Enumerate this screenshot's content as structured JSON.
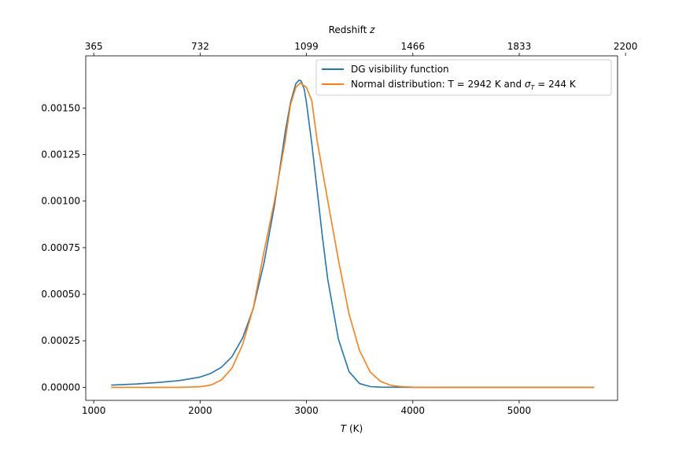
{
  "chart_data": {
    "type": "line",
    "xlabel_prefix": "T",
    "xlabel_suffix": " (K)",
    "top_xlabel_prefix": "Redshift ",
    "top_xlabel_var": "z",
    "xlim": [
      925,
      5925
    ],
    "ylim": [
      -7e-05,
      0.00178
    ],
    "xticks": [
      1000,
      2000,
      3000,
      4000,
      5000
    ],
    "xtick_labels": [
      "1000",
      "2000",
      "3000",
      "4000",
      "5000"
    ],
    "yticks": [
      0.0,
      0.00025,
      0.0005,
      0.00075,
      0.001,
      0.00125,
      0.0015
    ],
    "ytick_labels": [
      "0.00000",
      "0.00025",
      "0.00050",
      "0.00075",
      "0.00100",
      "0.00125",
      "0.00150"
    ],
    "top_xticks_T": [
      1000.6,
      2000.9,
      3000.0,
      4000.3,
      5000.6,
      6000.0
    ],
    "top_xtick_labels": [
      "365",
      "732",
      "1099",
      "1466",
      "1833",
      "2200"
    ],
    "legend_position": "upper right",
    "grid": false,
    "series": [
      {
        "name": "DG visibility function",
        "color": "#1f77b4",
        "x": [
          1170,
          1400,
          1600,
          1800,
          2000,
          2100,
          2200,
          2300,
          2400,
          2500,
          2600,
          2700,
          2800,
          2850,
          2900,
          2930,
          2950,
          2980,
          3000,
          3050,
          3100,
          3150,
          3200,
          3300,
          3400,
          3500,
          3600,
          3700,
          4000,
          5700
        ],
        "y": [
          1.2e-05,
          1.8e-05,
          2.6e-05,
          3.6e-05,
          5.5e-05,
          7.5e-05,
          0.000108,
          0.000165,
          0.000265,
          0.000423,
          0.000666,
          0.00098,
          0.00137,
          0.00153,
          0.00163,
          0.00165,
          0.001645,
          0.0016,
          0.00153,
          0.00131,
          0.00106,
          0.00081,
          0.00058,
          0.00026,
          8.5e-05,
          2e-05,
          4e-06,
          1e-06,
          0.0,
          0.0
        ]
      },
      {
        "name": "Normal distribution: T = 2942 K and σT = 244 K",
        "color": "#ff7f0e",
        "x": [
          1170,
          1800,
          2000,
          2100,
          2200,
          2300,
          2400,
          2500,
          2600,
          2700,
          2800,
          2850,
          2900,
          2942,
          3000,
          3050,
          3100,
          3200,
          3300,
          3400,
          3500,
          3600,
          3700,
          3800,
          3900,
          4000,
          4200,
          5700
        ],
        "y": [
          0.0,
          2e-07,
          3e-06,
          1.2e-05,
          3.9e-05,
          0.000103,
          0.000229,
          0.000425,
          0.000726,
          0.001003,
          0.001324,
          0.001519,
          0.00161,
          0.001635,
          0.00161,
          0.00154,
          0.001325,
          0.001003,
          0.000686,
          0.000395,
          0.000197,
          8.1e-05,
          3.1e-05,
          1e-05,
          3e-06,
          1e-06,
          0.0,
          0.0
        ]
      }
    ]
  },
  "legend": {
    "entry1": "DG visibility function",
    "entry2_prefix": "Normal distribution: T = 2942 K and ",
    "entry2_sigma": "σ",
    "entry2_sub": "T",
    "entry2_suffix": " = 244 K"
  },
  "colors": {
    "series1": "#1f77b4",
    "series2": "#ff7f0e"
  }
}
